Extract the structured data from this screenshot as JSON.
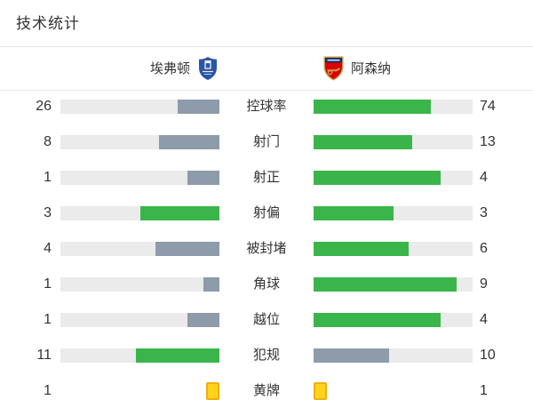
{
  "title": "技术统计",
  "teams": {
    "home": {
      "name": "埃弗顿",
      "badge_icon": "everton-crest"
    },
    "away": {
      "name": "阿森纳",
      "badge_icon": "arsenal-crest"
    }
  },
  "colors": {
    "green": "#3ab54a",
    "gray": "#8d9bab",
    "track": "#ebebeb",
    "yellow": "#ffd21c",
    "yellow_border": "#efaf11",
    "divider": "#e8e8e8",
    "text": "#333333",
    "everton_blue": "#2b55a5",
    "arsenal_red": "#db0007"
  },
  "rows": [
    {
      "kind": "bar",
      "label": "控球率",
      "home": "26",
      "away": "74",
      "home_pct": 26,
      "away_pct": 74,
      "home_color": "gray",
      "away_color": "green"
    },
    {
      "kind": "bar",
      "label": "射门",
      "home": "8",
      "away": "13",
      "home_pct": 38.1,
      "away_pct": 61.9,
      "home_color": "gray",
      "away_color": "green"
    },
    {
      "kind": "bar",
      "label": "射正",
      "home": "1",
      "away": "4",
      "home_pct": 20,
      "away_pct": 80,
      "home_color": "gray",
      "away_color": "green"
    },
    {
      "kind": "bar",
      "label": "射偏",
      "home": "3",
      "away": "3",
      "home_pct": 50,
      "away_pct": 50,
      "home_color": "green",
      "away_color": "green"
    },
    {
      "kind": "bar",
      "label": "被封堵",
      "home": "4",
      "away": "6",
      "home_pct": 40,
      "away_pct": 60,
      "home_color": "gray",
      "away_color": "green"
    },
    {
      "kind": "bar",
      "label": "角球",
      "home": "1",
      "away": "9",
      "home_pct": 10,
      "away_pct": 90,
      "home_color": "gray",
      "away_color": "green"
    },
    {
      "kind": "bar",
      "label": "越位",
      "home": "1",
      "away": "4",
      "home_pct": 20,
      "away_pct": 80,
      "home_color": "gray",
      "away_color": "green"
    },
    {
      "kind": "bar",
      "label": "犯规",
      "home": "11",
      "away": "10",
      "home_pct": 52.4,
      "away_pct": 47.6,
      "home_color": "green",
      "away_color": "gray"
    },
    {
      "kind": "cards",
      "label": "黄牌",
      "home": "1",
      "away": "1"
    }
  ],
  "chart_data": {
    "type": "bar",
    "subtype": "paired-horizontal-comparison",
    "title": "技术统计",
    "categories": [
      "控球率",
      "射门",
      "射正",
      "射偏",
      "被封堵",
      "角球",
      "越位",
      "犯规",
      "黄牌"
    ],
    "series": [
      {
        "name": "埃弗顿",
        "values": [
          26,
          8,
          1,
          3,
          4,
          1,
          1,
          11,
          1
        ]
      },
      {
        "name": "阿森纳",
        "values": [
          74,
          13,
          4,
          3,
          6,
          9,
          4,
          10,
          1
        ]
      }
    ],
    "notes": "控球率 is a percentage; other rows are counts. Bar fill length = value / (home+away). Green fill marks the higher (or tied) value, blue-gray the lower; 黄牌 row shows yellow card icons instead of bars.",
    "legend_position": "top",
    "grid": false
  }
}
